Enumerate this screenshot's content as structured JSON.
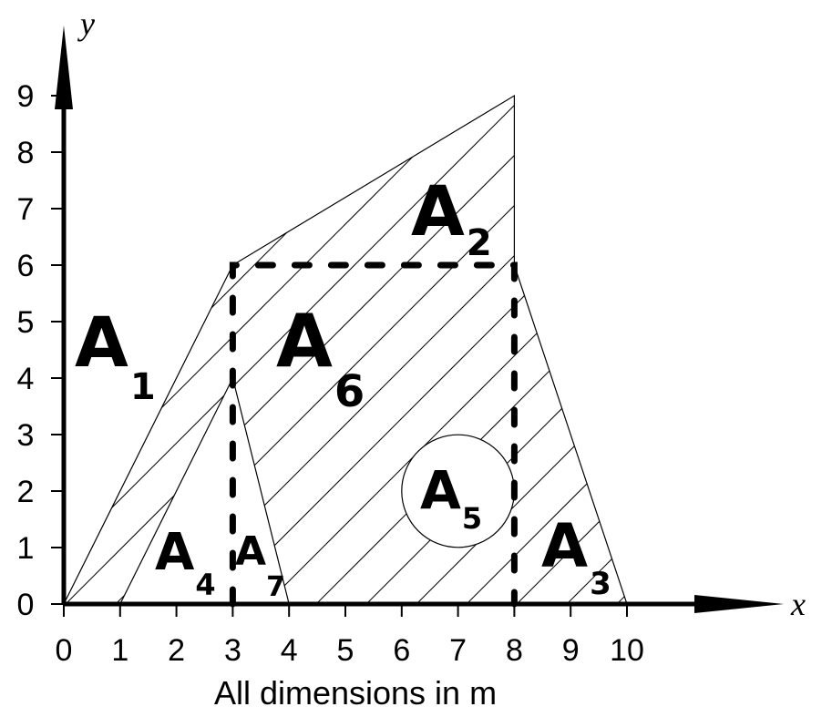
{
  "axes": {
    "x_name": "x",
    "y_name": "y",
    "x_ticks": [
      "0",
      "1",
      "2",
      "3",
      "4",
      "5",
      "6",
      "7",
      "8",
      "9",
      "10"
    ],
    "y_ticks": [
      "0",
      "1",
      "2",
      "3",
      "4",
      "5",
      "6",
      "7",
      "8",
      "9"
    ]
  },
  "caption": "All dimensions in m",
  "regions": [
    {
      "letter": "A",
      "subscript": "1"
    },
    {
      "letter": "A",
      "subscript": "2"
    },
    {
      "letter": "A",
      "subscript": "3"
    },
    {
      "letter": "A",
      "subscript": "4"
    },
    {
      "letter": "A",
      "subscript": "5"
    },
    {
      "letter": "A",
      "subscript": "6"
    },
    {
      "letter": "A",
      "subscript": "7"
    }
  ],
  "geometry_data": {
    "outer_polygon": [
      [
        0,
        0
      ],
      [
        3,
        6
      ],
      [
        8,
        9
      ],
      [
        8,
        6
      ],
      [
        10,
        0
      ]
    ],
    "inner_triangle": [
      [
        1,
        0
      ],
      [
        3,
        4
      ],
      [
        4,
        0
      ]
    ],
    "hatched_region": [
      [
        0,
        0
      ],
      [
        3,
        6
      ],
      [
        8,
        9
      ],
      [
        8,
        6
      ],
      [
        10,
        0
      ],
      [
        4,
        0
      ],
      [
        3,
        4
      ],
      [
        1,
        0
      ]
    ],
    "dashed_rectangle": [
      [
        3,
        0
      ],
      [
        3,
        6
      ],
      [
        8,
        6
      ],
      [
        8,
        0
      ]
    ],
    "circle": {
      "center": [
        7,
        2
      ],
      "radius": 1
    }
  }
}
